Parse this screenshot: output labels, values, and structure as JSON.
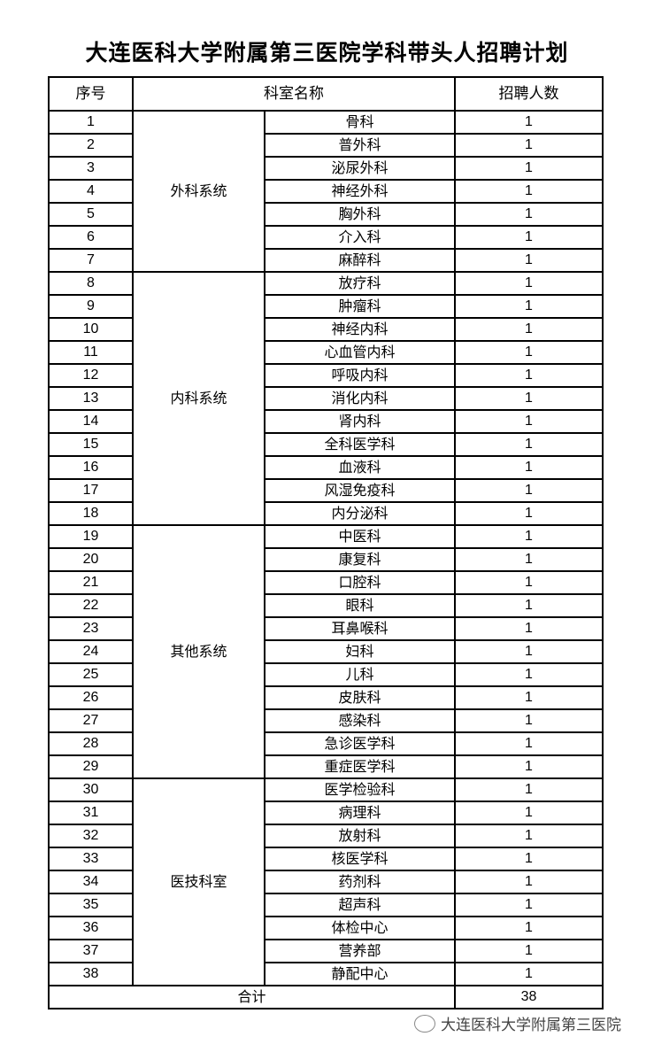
{
  "title": "大连医科大学附属第三医院学科带头人招聘计划",
  "headers": {
    "index": "序号",
    "department": "科室名称",
    "count": "招聘人数"
  },
  "groups": [
    {
      "name": "外科系统",
      "rows": [
        [
          "1",
          "骨科",
          "1"
        ],
        [
          "2",
          "普外科",
          "1"
        ],
        [
          "3",
          "泌尿外科",
          "1"
        ],
        [
          "4",
          "神经外科",
          "1"
        ],
        [
          "5",
          "胸外科",
          "1"
        ],
        [
          "6",
          "介入科",
          "1"
        ],
        [
          "7",
          "麻醉科",
          "1"
        ]
      ]
    },
    {
      "name": "内科系统",
      "rows": [
        [
          "8",
          "放疗科",
          "1"
        ],
        [
          "9",
          "肿瘤科",
          "1"
        ],
        [
          "10",
          "神经内科",
          "1"
        ],
        [
          "11",
          "心血管内科",
          "1"
        ],
        [
          "12",
          "呼吸内科",
          "1"
        ],
        [
          "13",
          "消化内科",
          "1"
        ],
        [
          "14",
          "肾内科",
          "1"
        ],
        [
          "15",
          "全科医学科",
          "1"
        ],
        [
          "16",
          "血液科",
          "1"
        ],
        [
          "17",
          "风湿免疫科",
          "1"
        ],
        [
          "18",
          "内分泌科",
          "1"
        ]
      ]
    },
    {
      "name": "其他系统",
      "rows": [
        [
          "19",
          "中医科",
          "1"
        ],
        [
          "20",
          "康复科",
          "1"
        ],
        [
          "21",
          "口腔科",
          "1"
        ],
        [
          "22",
          "眼科",
          "1"
        ],
        [
          "23",
          "耳鼻喉科",
          "1"
        ],
        [
          "24",
          "妇科",
          "1"
        ],
        [
          "25",
          "儿科",
          "1"
        ],
        [
          "26",
          "皮肤科",
          "1"
        ],
        [
          "27",
          "感染科",
          "1"
        ],
        [
          "28",
          "急诊医学科",
          "1"
        ],
        [
          "29",
          "重症医学科",
          "1"
        ]
      ]
    },
    {
      "name": "医技科室",
      "rows": [
        [
          "30",
          "医学检验科",
          "1"
        ],
        [
          "31",
          "病理科",
          "1"
        ],
        [
          "32",
          "放射科",
          "1"
        ],
        [
          "33",
          "核医学科",
          "1"
        ],
        [
          "34",
          "药剂科",
          "1"
        ],
        [
          "35",
          "超声科",
          "1"
        ],
        [
          "36",
          "体检中心",
          "1"
        ],
        [
          "37",
          "营养部",
          "1"
        ],
        [
          "38",
          "静配中心",
          "1"
        ]
      ]
    }
  ],
  "total": {
    "label": "合计",
    "value": "38"
  },
  "watermark": {
    "text": "大连医科大学附属第三医院",
    "icon": "wechat-icon"
  }
}
